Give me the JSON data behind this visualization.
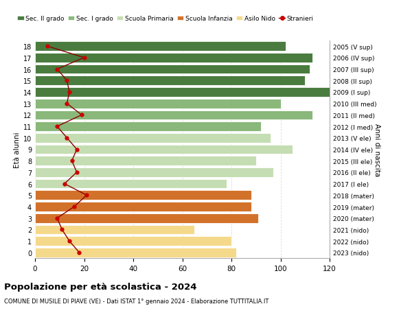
{
  "ages": [
    18,
    17,
    16,
    15,
    14,
    13,
    12,
    11,
    10,
    9,
    8,
    7,
    6,
    5,
    4,
    3,
    2,
    1,
    0
  ],
  "years": [
    "2005 (V sup)",
    "2006 (IV sup)",
    "2007 (III sup)",
    "2008 (II sup)",
    "2009 (I sup)",
    "2010 (III med)",
    "2011 (II med)",
    "2012 (I med)",
    "2013 (V ele)",
    "2014 (IV ele)",
    "2015 (III ele)",
    "2016 (II ele)",
    "2017 (I ele)",
    "2018 (mater)",
    "2019 (mater)",
    "2020 (mater)",
    "2021 (nido)",
    "2022 (nido)",
    "2023 (nido)"
  ],
  "bar_values": [
    102,
    113,
    112,
    110,
    120,
    100,
    113,
    92,
    96,
    105,
    90,
    97,
    78,
    88,
    88,
    91,
    65,
    80,
    82
  ],
  "bar_colors": [
    "#4a7c3f",
    "#4a7c3f",
    "#4a7c3f",
    "#4a7c3f",
    "#4a7c3f",
    "#8ab87a",
    "#8ab87a",
    "#8ab87a",
    "#c5ddb2",
    "#c5ddb2",
    "#c5ddb2",
    "#c5ddb2",
    "#c5ddb2",
    "#d2722a",
    "#d2722a",
    "#d2722a",
    "#f5d98b",
    "#f5d98b",
    "#f5d98b"
  ],
  "stranieri_values": [
    5,
    20,
    9,
    13,
    14,
    13,
    19,
    9,
    13,
    17,
    15,
    17,
    12,
    21,
    16,
    9,
    11,
    14,
    18
  ],
  "legend_labels": [
    "Sec. II grado",
    "Sec. I grado",
    "Scuola Primaria",
    "Scuola Infanzia",
    "Asilo Nido",
    "Stranieri"
  ],
  "legend_colors": [
    "#4a7c3f",
    "#8ab87a",
    "#c5ddb2",
    "#d2722a",
    "#f5d98b",
    "#cc0000"
  ],
  "ylabel_left": "Età alunni",
  "ylabel_right": "Anni di nascita",
  "title": "Popolazione per età scolastica - 2024",
  "subtitle": "COMUNE DI MUSILE DI PIAVE (VE) - Dati ISTAT 1° gennaio 2024 - Elaborazione TUTTITALIA.IT",
  "xlim": [
    0,
    120
  ],
  "xticks": [
    0,
    20,
    40,
    60,
    80,
    100,
    120
  ],
  "background_color": "#ffffff",
  "grid_color": "#dddddd",
  "stranieri_line_color": "#8b0000",
  "stranieri_marker_color": "#cc0000"
}
